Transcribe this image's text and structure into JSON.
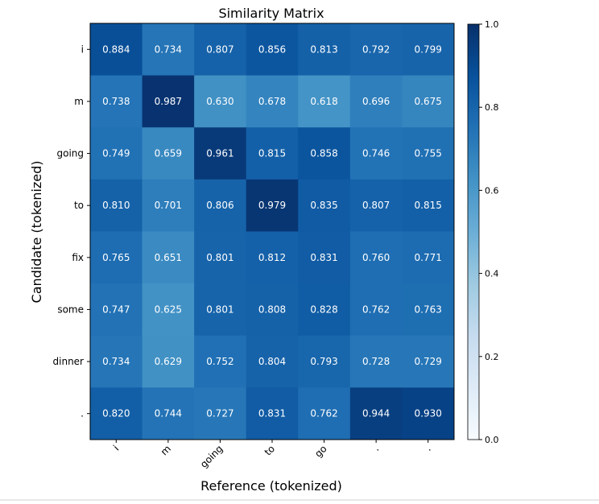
{
  "chart_data": {
    "type": "heatmap",
    "title": "Similarity Matrix",
    "xlabel": "Reference (tokenized)",
    "ylabel": "Candidate (tokenized)",
    "x_tick_labels": [
      "i",
      "m",
      "going",
      "to",
      "go",
      ".",
      "."
    ],
    "y_tick_labels": [
      "i",
      "m",
      "going",
      "to",
      "fix",
      "some",
      "dinner",
      "."
    ],
    "values": [
      [
        0.884,
        0.734,
        0.807,
        0.856,
        0.813,
        0.792,
        0.799
      ],
      [
        0.738,
        0.987,
        0.63,
        0.678,
        0.618,
        0.696,
        0.675
      ],
      [
        0.749,
        0.659,
        0.961,
        0.815,
        0.858,
        0.746,
        0.755
      ],
      [
        0.81,
        0.701,
        0.806,
        0.979,
        0.835,
        0.807,
        0.815
      ],
      [
        0.765,
        0.651,
        0.801,
        0.812,
        0.831,
        0.76,
        0.771
      ],
      [
        0.747,
        0.625,
        0.801,
        0.808,
        0.828,
        0.762,
        0.763
      ],
      [
        0.734,
        0.629,
        0.752,
        0.804,
        0.793,
        0.728,
        0.729
      ],
      [
        0.82,
        0.744,
        0.727,
        0.831,
        0.762,
        0.944,
        0.93
      ]
    ],
    "value_range": [
      0.0,
      1.0
    ],
    "colormap": "Blues",
    "colorbar_ticks": [
      "0.0",
      "0.2",
      "0.4",
      "0.6",
      "0.8",
      "1.0"
    ],
    "cell_label_color": "#ffffff",
    "grid": false
  }
}
